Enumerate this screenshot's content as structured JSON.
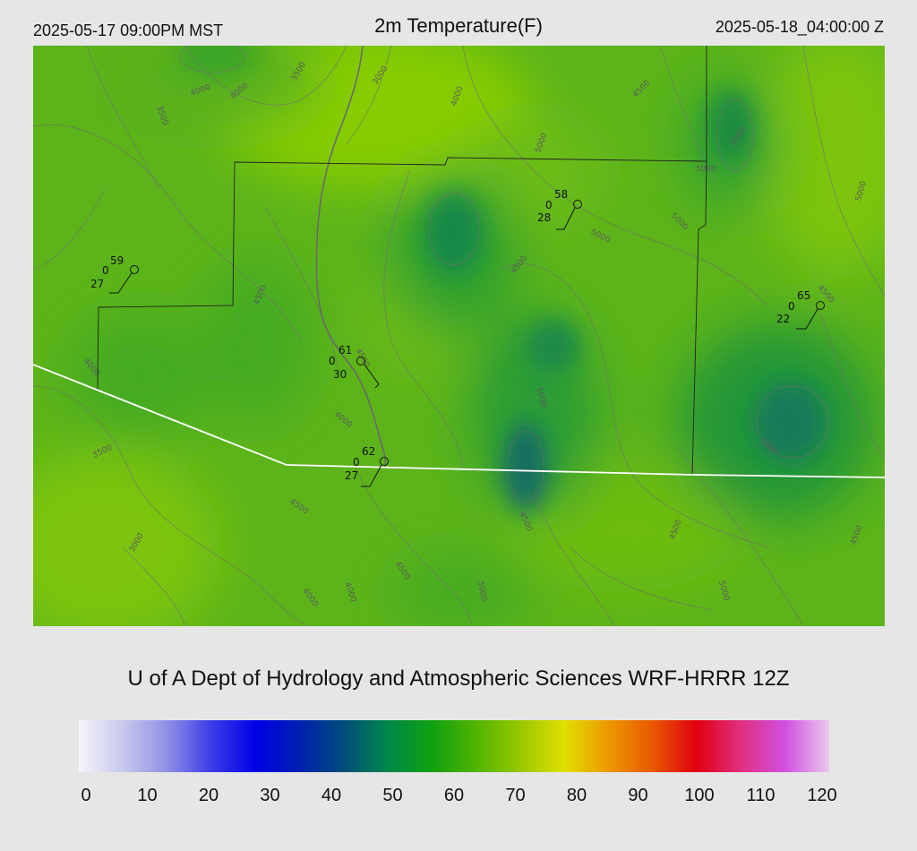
{
  "header": {
    "local_time": "2025-05-17 09:00PM MST",
    "title": "2m Temperature(F)",
    "utc_time": "2025-05-18_04:00:00 Z"
  },
  "credit": "U of A Dept of Hydrology and Atmospheric Sciences WRF-HRRR 12Z",
  "colorbar": {
    "min": 0,
    "max": 120,
    "ticks": [
      "0",
      "10",
      "20",
      "30",
      "40",
      "50",
      "60",
      "70",
      "80",
      "90",
      "100",
      "110",
      "120"
    ],
    "colors": [
      "#f4f4fa",
      "#c8c8ee",
      "#9090e6",
      "#3c3ce8",
      "#0000e6",
      "#0020b0",
      "#004c7a",
      "#00884a",
      "#10a010",
      "#50b400",
      "#98c800",
      "#e0e000",
      "#ec9800",
      "#e85800",
      "#e00010",
      "#e03080",
      "#d050e0",
      "#ecc8ee"
    ]
  },
  "map": {
    "stations": [
      {
        "temp": "59",
        "wind": "0",
        "dew": "27"
      },
      {
        "temp": "58",
        "wind": "0",
        "dew": "28"
      },
      {
        "temp": "61",
        "wind": "0",
        "dew": "30"
      },
      {
        "temp": "62",
        "wind": "0",
        "dew": "27"
      },
      {
        "temp": "65",
        "wind": "0",
        "dew": "22"
      }
    ],
    "contour_labels": [
      "3500",
      "4000",
      "4000",
      "3500",
      "3000",
      "4000",
      "4500",
      "5000",
      "5000",
      "5000",
      "5000",
      "5000",
      "4500",
      "4500",
      "5000",
      "4000",
      "4500",
      "3500",
      "4000",
      "4500",
      "3000",
      "4500",
      "4000",
      "5000",
      "4500",
      "5000",
      "4500",
      "4000",
      "5000",
      "4500",
      "5000",
      "4500"
    ]
  }
}
